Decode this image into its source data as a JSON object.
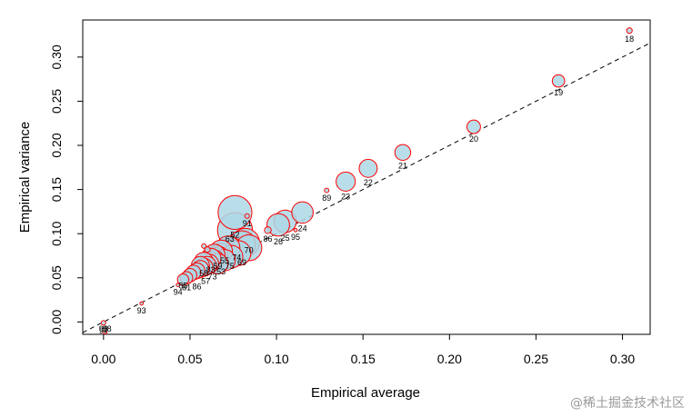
{
  "watermark": "@稀土掘金技术社区",
  "chart_data": {
    "type": "scatter",
    "title": "",
    "xlabel": "Empirical average",
    "ylabel": "Empirical variance",
    "xlim": [
      -0.012,
      0.316
    ],
    "ylim": [
      -0.014,
      0.342
    ],
    "xticks": [
      "0.00",
      "0.05",
      "0.10",
      "0.15",
      "0.20",
      "0.25",
      "0.30"
    ],
    "yticks": [
      "0.00",
      "0.05",
      "0.10",
      "0.15",
      "0.20",
      "0.25",
      "0.30"
    ],
    "reference_line": {
      "style": "dashed",
      "slope": 1,
      "intercept": 0
    },
    "colors": {
      "fill": "#add8e6",
      "stroke": "#ff0000",
      "label": "#000000",
      "axis": "#000000"
    },
    "points": [
      {
        "label": "18",
        "x": 0.304,
        "y": 0.33,
        "size": 0.5
      },
      {
        "label": "19",
        "x": 0.263,
        "y": 0.273,
        "size": 1.1
      },
      {
        "label": "20",
        "x": 0.214,
        "y": 0.221,
        "size": 1.2
      },
      {
        "label": "21",
        "x": 0.173,
        "y": 0.192,
        "size": 1.4
      },
      {
        "label": "22",
        "x": 0.153,
        "y": 0.174,
        "size": 1.6
      },
      {
        "label": "23",
        "x": 0.14,
        "y": 0.159,
        "size": 1.7
      },
      {
        "label": "89",
        "x": 0.129,
        "y": 0.149,
        "size": 0.4
      },
      {
        "label": "24",
        "x": 0.115,
        "y": 0.124,
        "size": 1.9
      },
      {
        "label": "25",
        "x": 0.105,
        "y": 0.114,
        "size": 2.0
      },
      {
        "label": "26",
        "x": 0.101,
        "y": 0.11,
        "size": 2.0
      },
      {
        "label": "86",
        "x": 0.095,
        "y": 0.104,
        "size": 0.6
      },
      {
        "label": "95",
        "x": 0.111,
        "y": 0.104,
        "size": 0.3
      },
      {
        "label": "52",
        "x": 0.076,
        "y": 0.124,
        "size": 3.0
      },
      {
        "label": "91",
        "x": 0.083,
        "y": 0.12,
        "size": 0.4
      },
      {
        "label": "",
        "x": 0.076,
        "y": 0.104,
        "size": 3.1
      },
      {
        "label": "",
        "x": 0.082,
        "y": 0.09,
        "size": 2.5
      },
      {
        "label": "",
        "x": 0.079,
        "y": 0.086,
        "size": 2.5
      },
      {
        "label": "",
        "x": 0.076,
        "y": 0.083,
        "size": 2.4
      },
      {
        "label": "",
        "x": 0.074,
        "y": 0.081,
        "size": 2.3
      },
      {
        "label": "",
        "x": 0.072,
        "y": 0.079,
        "size": 2.2
      },
      {
        "label": "",
        "x": 0.07,
        "y": 0.078,
        "size": 2.1
      },
      {
        "label": "",
        "x": 0.068,
        "y": 0.076,
        "size": 2.0
      },
      {
        "label": "",
        "x": 0.066,
        "y": 0.074,
        "size": 1.9
      },
      {
        "label": "",
        "x": 0.065,
        "y": 0.072,
        "size": 1.9
      },
      {
        "label": "",
        "x": 0.064,
        "y": 0.07,
        "size": 1.8
      },
      {
        "label": "",
        "x": 0.062,
        "y": 0.068,
        "size": 1.8
      },
      {
        "label": "",
        "x": 0.061,
        "y": 0.066,
        "size": 1.7
      },
      {
        "label": "",
        "x": 0.06,
        "y": 0.064,
        "size": 1.6
      },
      {
        "label": "",
        "x": 0.058,
        "y": 0.062,
        "size": 1.6
      },
      {
        "label": "",
        "x": 0.056,
        "y": 0.06,
        "size": 1.5
      },
      {
        "label": "",
        "x": 0.054,
        "y": 0.058,
        "size": 1.4
      },
      {
        "label": "",
        "x": 0.052,
        "y": 0.056,
        "size": 1.3
      },
      {
        "label": "",
        "x": 0.05,
        "y": 0.053,
        "size": 1.2
      },
      {
        "label": "",
        "x": 0.048,
        "y": 0.05,
        "size": 1.1
      },
      {
        "label": "",
        "x": 0.046,
        "y": 0.048,
        "size": 1.0
      },
      {
        "label": "",
        "x": 0.078,
        "y": 0.078,
        "size": 2.2
      },
      {
        "label": "",
        "x": 0.074,
        "y": 0.074,
        "size": 2.0
      },
      {
        "label": "",
        "x": 0.07,
        "y": 0.07,
        "size": 1.9
      },
      {
        "label": "",
        "x": 0.066,
        "y": 0.066,
        "size": 1.8
      },
      {
        "label": "",
        "x": 0.084,
        "y": 0.084,
        "size": 2.3
      },
      {
        "label": "",
        "x": 0.08,
        "y": 0.088,
        "size": 2.4
      },
      {
        "label": "",
        "x": 0.072,
        "y": 0.084,
        "size": 2.1
      },
      {
        "label": "",
        "x": 0.068,
        "y": 0.08,
        "size": 2.0
      },
      {
        "label": "",
        "x": 0.064,
        "y": 0.076,
        "size": 1.9
      },
      {
        "label": "",
        "x": 0.062,
        "y": 0.072,
        "size": 1.8
      },
      {
        "label": "",
        "x": 0.058,
        "y": 0.068,
        "size": 1.7
      },
      {
        "label": "",
        "x": 0.056,
        "y": 0.064,
        "size": 1.6
      },
      {
        "label": "",
        "x": 0.06,
        "y": 0.082,
        "size": 0.5
      },
      {
        "label": "",
        "x": 0.058,
        "y": 0.086,
        "size": 0.4
      },
      {
        "label": "93",
        "x": 0.022,
        "y": 0.021,
        "size": 0.3
      },
      {
        "label": "94",
        "x": 0.043,
        "y": 0.042,
        "size": 0.3
      },
      {
        "label": "97",
        "x": 0.0,
        "y": -0.001,
        "size": 0.4
      },
      {
        "label": "",
        "x": 0.001,
        "y": -0.012,
        "size": 0.3
      }
    ],
    "extra_labels": [
      {
        "text": "85",
        "x": 0.046,
        "y": 0.038
      },
      {
        "text": "81",
        "x": 0.048,
        "y": 0.036
      },
      {
        "text": "86",
        "x": 0.054,
        "y": 0.037
      },
      {
        "text": "57",
        "x": 0.059,
        "y": 0.043
      },
      {
        "text": "73",
        "x": 0.063,
        "y": 0.048
      },
      {
        "text": "53",
        "x": 0.068,
        "y": 0.054
      },
      {
        "text": "75",
        "x": 0.073,
        "y": 0.06
      },
      {
        "text": "69",
        "x": 0.08,
        "y": 0.064
      },
      {
        "text": "63",
        "x": 0.073,
        "y": 0.091
      },
      {
        "text": "55",
        "x": 0.07,
        "y": 0.066
      },
      {
        "text": "59",
        "x": 0.066,
        "y": 0.06
      },
      {
        "text": "58",
        "x": 0.058,
        "y": 0.052
      },
      {
        "text": "83",
        "x": 0.062,
        "y": 0.056
      },
      {
        "text": "74",
        "x": 0.077,
        "y": 0.07
      },
      {
        "text": "70",
        "x": 0.084,
        "y": 0.078
      },
      {
        "text": "96",
        "x": 0.0,
        "y": -0.011
      },
      {
        "text": "98",
        "x": 0.002,
        "y": -0.011
      }
    ]
  }
}
